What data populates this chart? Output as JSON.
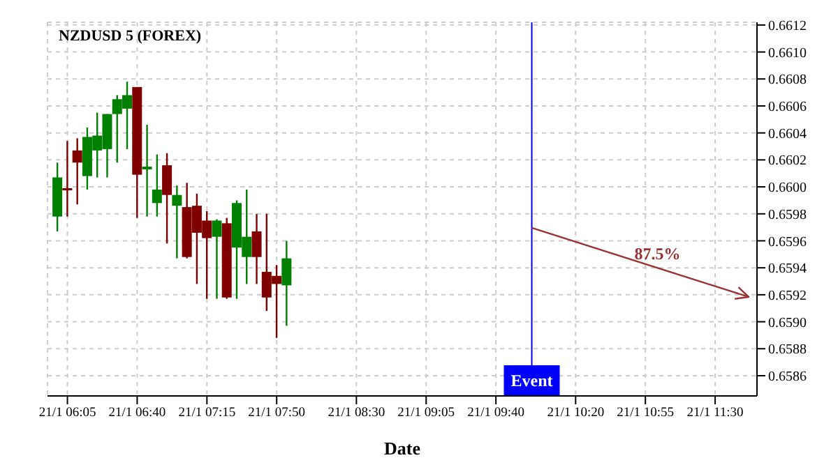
{
  "chart_data": {
    "type": "candlestick",
    "title": "NZDUSD 5 (FOREX)",
    "xlabel": "Date",
    "x": [
      "--01-21T06:00",
      "--01-21T06:05",
      "--01-21T06:10",
      "--01-21T06:15",
      "--01-21T06:20",
      "--01-21T06:25",
      "--01-21T06:30",
      "--01-21T06:35",
      "--01-21T06:40",
      "--01-21T06:45",
      "--01-21T06:50",
      "--01-21T06:55",
      "--01-21T07:00",
      "--01-21T07:05",
      "--01-21T07:10",
      "--01-21T07:15",
      "--01-21T07:20",
      "--01-21T07:25",
      "--01-21T07:30",
      "--01-21T07:35",
      "--01-21T07:40",
      "--01-21T07:45",
      "--01-21T07:50",
      "--01-21T07:55"
    ],
    "ohlc": [
      [
        0.65978,
        0.66018,
        0.65967,
        0.66007
      ],
      [
        0.65999,
        0.66034,
        0.65978,
        0.65998
      ],
      [
        0.66027,
        0.66036,
        0.65987,
        0.66018
      ],
      [
        0.66008,
        0.66044,
        0.65998,
        0.66037
      ],
      [
        0.66027,
        0.66055,
        0.66007,
        0.66038
      ],
      [
        0.66028,
        0.66054,
        0.66007,
        0.66054
      ],
      [
        0.66054,
        0.66068,
        0.66018,
        0.66065
      ],
      [
        0.66058,
        0.66078,
        0.66028,
        0.66068
      ],
      [
        0.66074,
        0.66074,
        0.65977,
        0.66009
      ],
      [
        0.66013,
        0.66046,
        0.65978,
        0.66015
      ],
      [
        0.65988,
        0.66024,
        0.65978,
        0.65998
      ],
      [
        0.66016,
        0.66025,
        0.65958,
        0.65994
      ],
      [
        0.65986,
        0.66001,
        0.65947,
        0.65994
      ],
      [
        0.65985,
        0.66003,
        0.65947,
        0.65948
      ],
      [
        0.65986,
        0.65995,
        0.65928,
        0.65966
      ],
      [
        0.65975,
        0.65982,
        0.65917,
        0.65962
      ],
      [
        0.65963,
        0.65976,
        0.65917,
        0.65975
      ],
      [
        0.65973,
        0.65977,
        0.65917,
        0.65918
      ],
      [
        0.65955,
        0.6599,
        0.65917,
        0.65988
      ],
      [
        0.65948,
        0.65998,
        0.65928,
        0.65963
      ],
      [
        0.65967,
        0.6598,
        0.65928,
        0.65948
      ],
      [
        0.65937,
        0.6598,
        0.65908,
        0.65918
      ],
      [
        0.65934,
        0.65942,
        0.65888,
        0.65928
      ],
      [
        0.65927,
        0.6596,
        0.65897,
        0.65947
      ]
    ],
    "colors": [
      "#008000",
      "#800000",
      "#800000",
      "#008000",
      "#008000",
      "#008000",
      "#008000",
      "#008000",
      "#800000",
      "#008000",
      "#008000",
      "#800000",
      "#008000",
      "#800000",
      "#800000",
      "#800000",
      "#008000",
      "#800000",
      "#008000",
      "#008000",
      "#800000",
      "#800000",
      "#800000",
      "#008000"
    ],
    "annotations": [
      "87.5%"
    ],
    "ref_lines": [
      {
        "axis": "x",
        "value": "--01-21T09:58",
        "label": "Event",
        "color": "#0000ff"
      }
    ],
    "xlim": [
      "--01-21T05:55",
      "--01-21T11:51"
    ],
    "xticks": [
      {
        "value": "--01-21T06:05",
        "label": "21/1 06:05"
      },
      {
        "value": "--01-21T06:40",
        "label": "21/1 06:40"
      },
      {
        "value": "--01-21T07:15",
        "label": "21/1 07:15"
      },
      {
        "value": "--01-21T07:50",
        "label": "21/1 07:50"
      },
      {
        "value": "--01-21T08:30",
        "label": "21/1 08:30"
      },
      {
        "value": "--01-21T09:05",
        "label": "21/1 09:05"
      },
      {
        "value": "--01-21T09:40",
        "label": "21/1 09:40"
      },
      {
        "value": "--01-21T10:20",
        "label": "21/1 10:20"
      },
      {
        "value": "--01-21T10:55",
        "label": "21/1 10:55"
      },
      {
        "value": "--01-21T11:30",
        "label": "21/1 11:30"
      }
    ],
    "ylim": [
      0.65845,
      0.66122
    ],
    "yticks": [
      0.6586,
      0.6588,
      {
        "value": 0.659,
        "label": "0.6590"
      },
      0.6592,
      0.6594,
      0.6596,
      0.6598,
      {
        "value": 0.66,
        "label": "0.6600"
      },
      0.6602,
      0.6604,
      0.6606,
      0.6608,
      {
        "value": 0.661,
        "label": "0.6610"
      },
      0.6612
    ],
    "grid": true
  }
}
